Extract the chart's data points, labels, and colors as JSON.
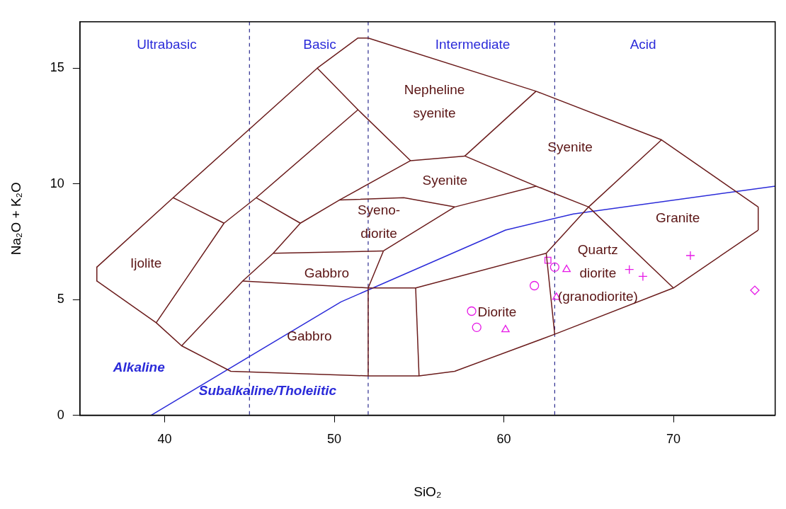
{
  "chart_data": {
    "type": "scatter",
    "xlabel": "SiO₂",
    "ylabel": "Na₂O + K₂O",
    "xlim": [
      35,
      76
    ],
    "ylim": [
      0,
      17
    ],
    "xticks": [
      40,
      50,
      60,
      70
    ],
    "yticks": [
      0,
      5,
      10,
      15
    ],
    "grid": false,
    "legend": false,
    "series": [
      {
        "type": "line",
        "color": "#6b1c1c",
        "marker": "none",
        "x": [
          36,
          39.5,
          41,
          43.9,
          52,
          55,
          57.1,
          63,
          70,
          75
        ],
        "values": [
          5.8,
          4,
          3,
          1.9,
          1.7,
          1.7,
          1.9,
          3.5,
          5.5,
          8
        ]
      },
      {
        "type": "line",
        "color": "#6b1c1c",
        "marker": "none",
        "x": [
          36,
          40.5,
          49,
          51.4,
          52,
          61.9,
          69.3,
          75
        ],
        "values": [
          6.4,
          9.4,
          15,
          16.3,
          16.3,
          14,
          11.9,
          9
        ]
      },
      {
        "type": "line",
        "color": "#6b1c1c",
        "marker": "none",
        "x": [
          36,
          36
        ],
        "values": [
          6.4,
          5.8
        ]
      },
      {
        "type": "line",
        "color": "#6b1c1c",
        "marker": "none",
        "x": [
          75,
          75
        ],
        "values": [
          8,
          9
        ]
      },
      {
        "type": "line",
        "color": "#6b1c1c",
        "marker": "none",
        "x": [
          40.5,
          43.5
        ],
        "values": [
          9.4,
          8.3
        ]
      },
      {
        "type": "line",
        "color": "#6b1c1c",
        "marker": "none",
        "x": [
          39.5,
          43.5,
          45.4,
          51.4
        ],
        "values": [
          4,
          8.3,
          9.4,
          13.2
        ]
      },
      {
        "type": "line",
        "color": "#6b1c1c",
        "marker": "none",
        "x": [
          49,
          51.4,
          54.5
        ],
        "values": [
          15,
          13.2,
          11
        ]
      },
      {
        "type": "line",
        "color": "#6b1c1c",
        "marker": "none",
        "x": [
          45.4,
          48
        ],
        "values": [
          9.4,
          8.3
        ]
      },
      {
        "type": "line",
        "color": "#6b1c1c",
        "marker": "none",
        "x": [
          41,
          44.6,
          46.4,
          48,
          50.3,
          54.5,
          57.7,
          61.9
        ],
        "values": [
          3,
          5.8,
          7,
          8.3,
          9.3,
          11,
          11.2,
          9.9
        ]
      },
      {
        "type": "line",
        "color": "#6b1c1c",
        "marker": "none",
        "x": [
          46.4,
          52.9
        ],
        "values": [
          7,
          7.1
        ]
      },
      {
        "type": "line",
        "color": "#6b1c1c",
        "marker": "none",
        "x": [
          44.6,
          52,
          54.8,
          62.5
        ],
        "values": [
          5.8,
          5.5,
          5.5,
          7
        ]
      },
      {
        "type": "line",
        "color": "#6b1c1c",
        "marker": "none",
        "x": [
          52,
          52,
          52.9
        ],
        "values": [
          1.7,
          5.5,
          7.1
        ]
      },
      {
        "type": "line",
        "color": "#6b1c1c",
        "marker": "none",
        "x": [
          54.8,
          55
        ],
        "values": [
          5.5,
          1.7
        ]
      },
      {
        "type": "line",
        "color": "#6b1c1c",
        "marker": "none",
        "x": [
          52.9,
          57.1,
          61.9,
          65,
          70
        ],
        "values": [
          7.1,
          9,
          9.9,
          9,
          5.5
        ]
      },
      {
        "type": "line",
        "color": "#6b1c1c",
        "marker": "none",
        "x": [
          50.3,
          54.1,
          57.1
        ],
        "values": [
          9.3,
          9.4,
          9
        ]
      },
      {
        "type": "line",
        "color": "#6b1c1c",
        "marker": "none",
        "x": [
          57.7,
          61.9
        ],
        "values": [
          11.2,
          14
        ]
      },
      {
        "type": "line",
        "color": "#6b1c1c",
        "marker": "none",
        "x": [
          62.5,
          65,
          69.3
        ],
        "values": [
          7,
          9,
          11.9
        ]
      },
      {
        "type": "line",
        "color": "#6b1c1c",
        "marker": "none",
        "x": [
          62.5,
          63
        ],
        "values": [
          7,
          3.5
        ]
      },
      {
        "type": "line",
        "color": "#2b2bd9",
        "marker": "none",
        "x": [
          39.2,
          50.4,
          60.1,
          64.1,
          76
        ],
        "values": [
          0,
          4.9,
          8,
          8.7,
          9.9
        ]
      },
      {
        "color": "#e619e6",
        "marker": "square",
        "x": [
          62.6
        ],
        "values": [
          6.7
        ]
      },
      {
        "color": "#e619e6",
        "marker": "circle",
        "x": [
          63
        ],
        "values": [
          6.4
        ]
      },
      {
        "color": "#e619e6",
        "marker": "triangle",
        "x": [
          63.7
        ],
        "values": [
          6.3
        ]
      },
      {
        "color": "#e619e6",
        "marker": "circle",
        "x": [
          61.8
        ],
        "values": [
          5.6
        ]
      },
      {
        "color": "#e619e6",
        "marker": "triangle",
        "x": [
          63.1
        ],
        "values": [
          5.1
        ]
      },
      {
        "color": "#e619e6",
        "marker": "cross",
        "x": [
          67.4
        ],
        "values": [
          6.3
        ]
      },
      {
        "color": "#e619e6",
        "marker": "cross",
        "x": [
          68.2
        ],
        "values": [
          6
        ]
      },
      {
        "color": "#e619e6",
        "marker": "cross",
        "x": [
          71
        ],
        "values": [
          6.9
        ]
      },
      {
        "color": "#e619e6",
        "marker": "diamond",
        "x": [
          74.8
        ],
        "values": [
          5.4
        ]
      },
      {
        "color": "#e619e6",
        "marker": "circle",
        "x": [
          58.1
        ],
        "values": [
          4.5
        ]
      },
      {
        "color": "#e619e6",
        "marker": "circle",
        "x": [
          58.4
        ],
        "values": [
          3.8
        ]
      },
      {
        "color": "#e619e6",
        "marker": "triangle",
        "x": [
          60.1
        ],
        "values": [
          3.7
        ]
      }
    ],
    "ref_lines": [
      {
        "axis": "x",
        "value": 45,
        "color": "#2b2b8f",
        "line_style": "dashed"
      },
      {
        "axis": "x",
        "value": 52,
        "color": "#2b2b8f",
        "line_style": "dashed"
      },
      {
        "axis": "x",
        "value": 63,
        "color": "#2b2b8f",
        "line_style": "dashed"
      }
    ],
    "annotations": [
      "Ultrabasic",
      "Basic",
      "Intermediate",
      "Acid",
      "Nepheline\nsyenite",
      "Syenite",
      "Syenite",
      "Syeno-\ndiorite",
      "Gabbro",
      "Gabbro",
      "Ijolite",
      "Diorite",
      "Quartz\ndiorite\n(granodiorite)",
      "Granite",
      "Alkaline",
      "Subalkaline/Tholeiitic"
    ]
  }
}
